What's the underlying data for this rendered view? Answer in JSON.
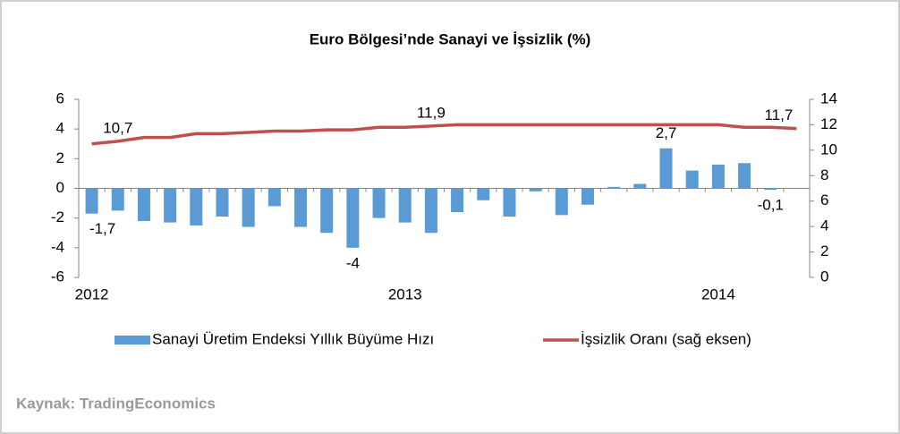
{
  "chart_data": {
    "type": "bar-line",
    "title": "Euro Bölgesi’nde Sanayi ve İşsizlik (%)",
    "source": "Kaynak: TradingEconomics",
    "categories": [
      "2012",
      null,
      null,
      null,
      null,
      null,
      null,
      null,
      null,
      null,
      null,
      null,
      "2013",
      null,
      null,
      null,
      null,
      null,
      null,
      null,
      null,
      null,
      null,
      null,
      "2014",
      null,
      null,
      null
    ],
    "series": [
      {
        "name": "Sanayi Üretim Endeksi Yıllık Büyüme Hızı",
        "type": "bar",
        "color": "#5b9bd5",
        "values": [
          -1.7,
          -1.5,
          -2.2,
          -2.3,
          -2.5,
          -1.9,
          -2.6,
          -1.2,
          -2.6,
          -3.0,
          -4,
          -2.0,
          -2.3,
          -3.0,
          -1.6,
          -0.8,
          -1.9,
          -0.2,
          -1.8,
          -1.1,
          0.1,
          0.3,
          2.7,
          1.2,
          1.6,
          1.7,
          -0.1,
          null
        ],
        "value_labels": [
          "-1,7",
          null,
          null,
          null,
          null,
          null,
          null,
          null,
          null,
          null,
          "-4",
          null,
          null,
          null,
          null,
          null,
          null,
          null,
          null,
          null,
          null,
          null,
          "2,7",
          null,
          null,
          null,
          "-0,1",
          null
        ]
      },
      {
        "name": "İşsizlik Oranı (sağ eksen)",
        "type": "line",
        "axis": "y2",
        "color": "#c0504d",
        "values": [
          10.5,
          10.7,
          11.0,
          11.0,
          11.3,
          11.3,
          11.4,
          11.5,
          11.5,
          11.6,
          11.6,
          11.8,
          11.8,
          11.9,
          12.0,
          12.0,
          12.0,
          12.0,
          12.0,
          12.0,
          12.0,
          12.0,
          12.0,
          12.0,
          12.0,
          11.8,
          11.8,
          11.7
        ],
        "value_labels": [
          null,
          "10,7",
          null,
          null,
          null,
          null,
          null,
          null,
          null,
          null,
          null,
          null,
          null,
          "11,9",
          null,
          null,
          null,
          null,
          null,
          null,
          null,
          null,
          null,
          null,
          null,
          null,
          null,
          "11,7"
        ]
      }
    ],
    "ylim": [
      -6,
      6
    ],
    "yticks": [
      -6,
      -4,
      -2,
      0,
      2,
      4,
      6
    ],
    "y2lim": [
      0,
      14
    ],
    "y2ticks": [
      0,
      2,
      4,
      6,
      8,
      10,
      12,
      14
    ]
  }
}
